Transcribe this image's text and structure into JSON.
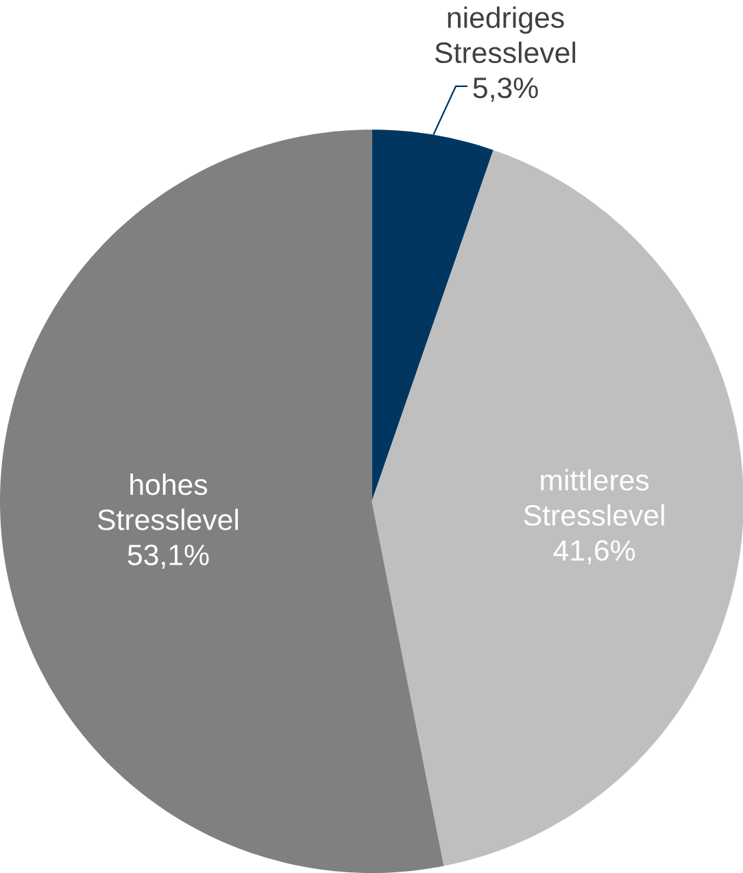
{
  "chart_data": {
    "type": "pie",
    "categories": [
      "niedriges Stresslevel",
      "mittleres Stresslevel",
      "hohes Stresslevel"
    ],
    "values": [
      5.3,
      41.6,
      53.1
    ],
    "value_labels": [
      "5,3%",
      "41,6%",
      "53,1%"
    ],
    "colors": [
      "#003660",
      "#bfbfbf",
      "#808080"
    ]
  }
}
